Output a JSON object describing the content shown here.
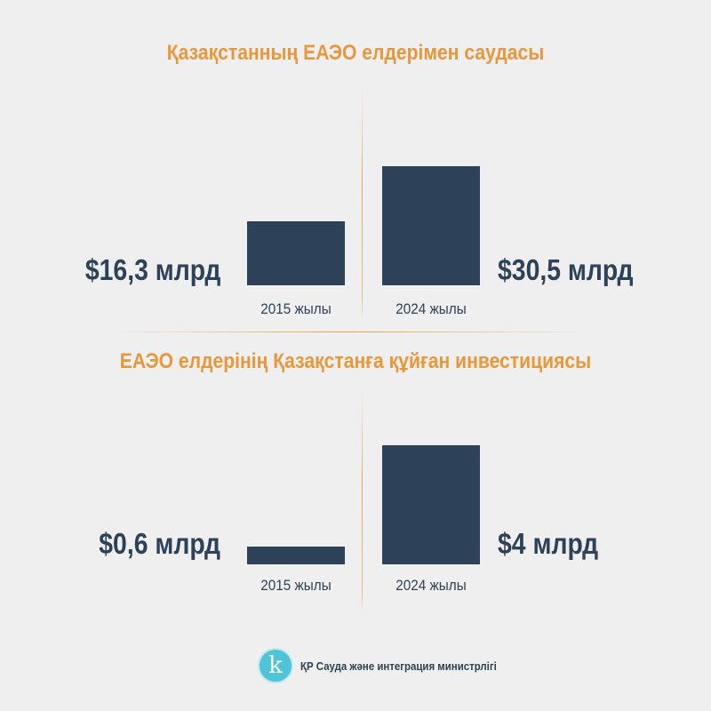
{
  "chart_data": [
    {
      "type": "bar",
      "title": "Қазақстанның ЕАЭО елдерімен саудасы",
      "categories": [
        "2015 жылы",
        "2024 жылы"
      ],
      "values": [
        16.3,
        30.5
      ],
      "value_labels": [
        "$16,3 млрд",
        "$30,5 млрд"
      ],
      "unit": "млрд $",
      "color": "#2d4258",
      "title_color": "#e8973a"
    },
    {
      "type": "bar",
      "title": "ЕАЭО елдерінің Қазақстанға құйған инвестициясы",
      "categories": [
        "2015 жылы",
        "2024 жылы"
      ],
      "values": [
        0.6,
        4
      ],
      "value_labels": [
        "$0,6 млрд",
        "$4 млрд"
      ],
      "unit": "млрд $",
      "color": "#2d4258",
      "title_color": "#e8973a"
    }
  ],
  "footer": {
    "logo_letter": "k",
    "logo_icon": "k-circle-logo-icon",
    "ministry": "ҚР Сауда және интеграция министрлігі"
  },
  "colors": {
    "background": "#efefef",
    "accent": "#e8973a",
    "bar": "#2d4258",
    "logo": "#4fc3d7"
  }
}
